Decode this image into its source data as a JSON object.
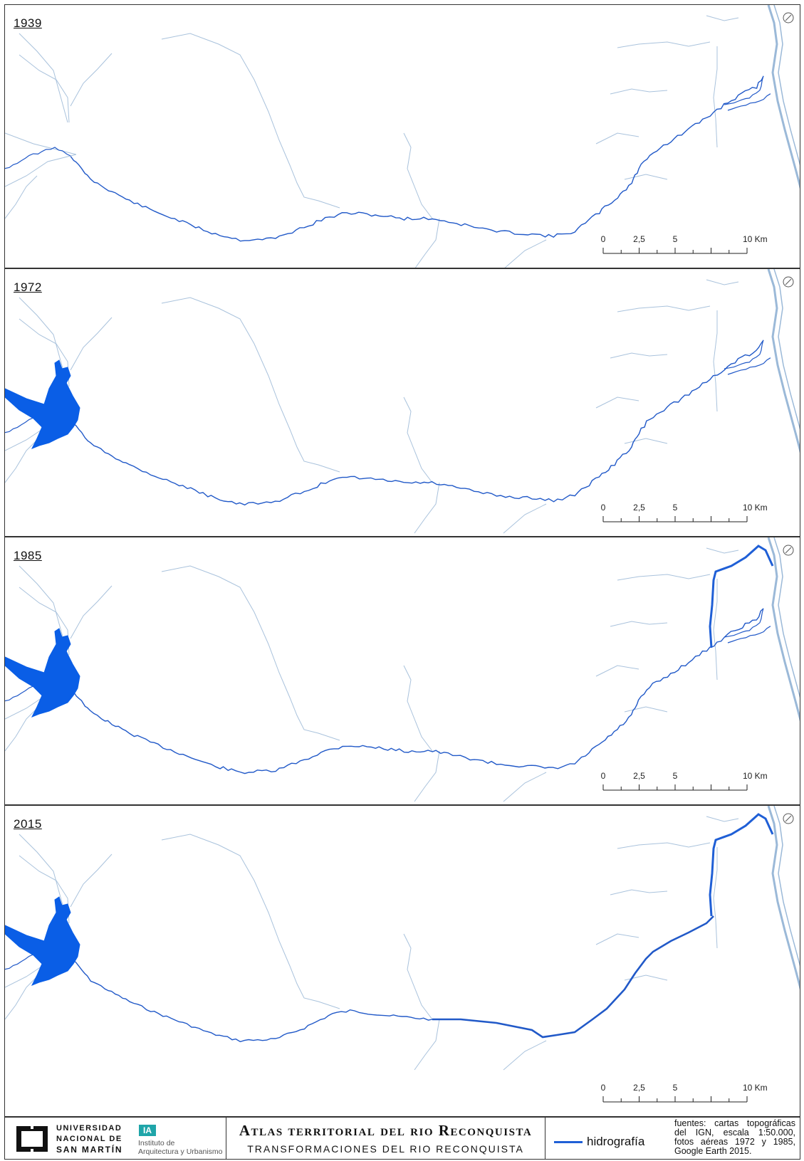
{
  "panels": [
    {
      "year": "1939",
      "reservoir": false,
      "canal": false,
      "canalized_main": false
    },
    {
      "year": "1972",
      "reservoir": true,
      "canal": false,
      "canalized_main": false
    },
    {
      "year": "1985",
      "reservoir": true,
      "canal": true,
      "canalized_main": false
    },
    {
      "year": "2015",
      "reservoir": true,
      "canal": true,
      "canalized_main": true
    }
  ],
  "scale_bar": {
    "labels": [
      "0",
      "2,5",
      "5",
      "10 Km"
    ],
    "values_km": [
      0,
      2.5,
      5,
      10
    ]
  },
  "colors": {
    "river": "#2159c8",
    "reservoir": "#0a5ee6",
    "streams": "#a9c2dc",
    "parana": "#9bb9d8",
    "canal": "#1f5fd6"
  },
  "footer": {
    "unsam_lines": [
      "UNIVERSIDAD",
      "NACIONAL DE",
      "SAN MARTÍN"
    ],
    "ia_badge": "IA",
    "ia_lines": [
      "Instituto de",
      "Arquitectura y Urbanismo"
    ],
    "title": "Atlas territorial del rio Reconquista",
    "subtitle": "TRANSFORMACIONES DEL RIO RECONQUISTA",
    "legend_label": "hidrografía",
    "sources": "fuentes: cartas topográficas del IGN, escala 1:50.000, fotos aéreas 1972 y 1985, Google Earth 2015."
  }
}
